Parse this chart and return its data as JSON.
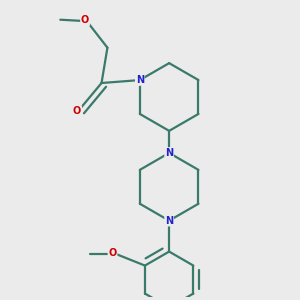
{
  "bg_color": "#ebebeb",
  "bond_color": "#3a7a6a",
  "N_color": "#2222cc",
  "O_color": "#cc0000",
  "line_width": 1.6,
  "font_size_atom": 7.0,
  "fig_size": [
    3.0,
    3.0
  ],
  "xlim": [
    0.05,
    0.95
  ],
  "ylim": [
    0.02,
    1.02
  ]
}
